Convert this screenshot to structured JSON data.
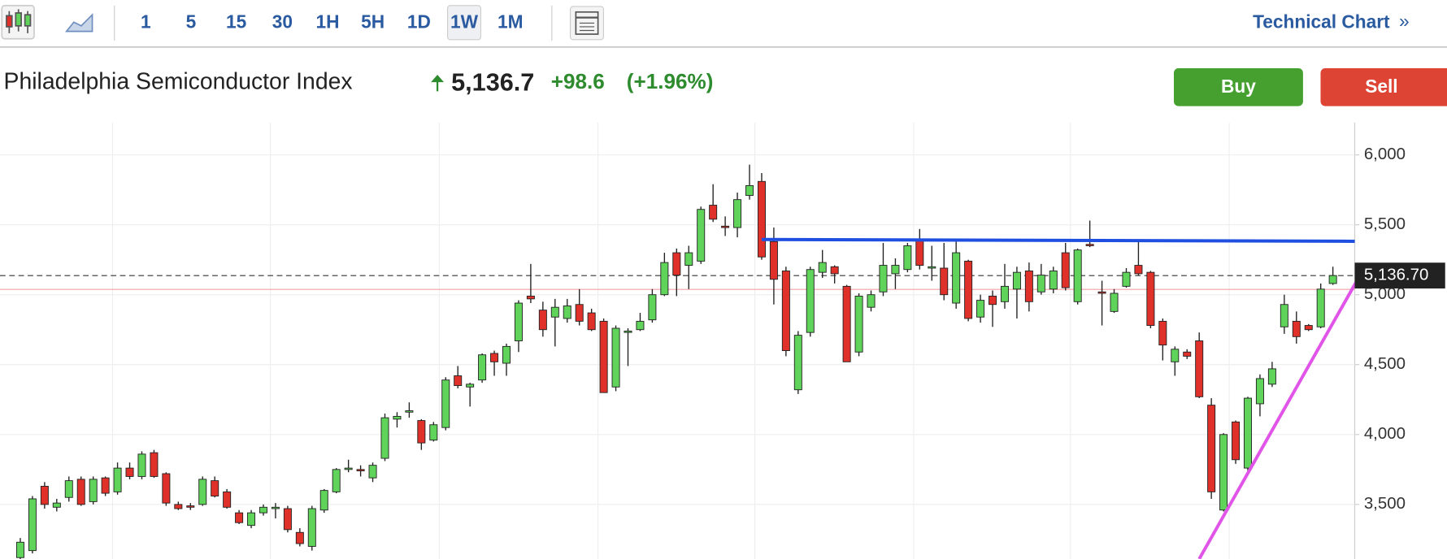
{
  "toolbar": {
    "intervals": [
      "1",
      "5",
      "15",
      "30",
      "1H",
      "5H",
      "1D",
      "1W",
      "1M"
    ],
    "selected": "1W",
    "link": "Technical Chart",
    "link_arrow": "»"
  },
  "header": {
    "title": "Philadelphia Semiconductor Index",
    "price": "5,136.7",
    "change": "+98.6",
    "change_pct": "(+1.96%)"
  },
  "buttons": {
    "buy": "Buy",
    "sell": "Sell"
  },
  "chart_data": {
    "type": "candlestick",
    "up_color": "#5fd35a",
    "down_color": "#e0302a",
    "outline": "#222",
    "ylim": [
      3110,
      6230
    ],
    "yticks": [
      {
        "value": 3500,
        "label": "3,500"
      },
      {
        "value": 4000,
        "label": "4,000"
      },
      {
        "value": 4500,
        "label": "4,500"
      },
      {
        "value": 5000,
        "label": "5,000"
      },
      {
        "value": 5500,
        "label": "5,500"
      },
      {
        "value": 6000,
        "label": "6,000"
      }
    ],
    "grid": true,
    "last_price": {
      "value": 5136.7,
      "label": "5,136.70"
    },
    "previous_close": 5038.1,
    "trendlines": [
      {
        "color": "#1f4fe0",
        "points": [
          [
            61,
            5395
          ],
          [
            117,
            5380
          ]
        ]
      },
      {
        "color": "#e055e8",
        "points": [
          [
            97,
            3110
          ],
          [
            111.8,
            5380
          ]
        ]
      }
    ],
    "open": [
      3120,
      3170,
      3630,
      3480,
      3550,
      3680,
      3520,
      3690,
      3590,
      3760,
      3700,
      3870,
      3720,
      3500,
      3490,
      3500,
      3670,
      3590,
      3440,
      3350,
      3440,
      3470,
      3470,
      3300,
      3200,
      3460,
      3590,
      3750,
      3750,
      3690,
      3830,
      4110,
      4160,
      4100,
      3960,
      4050,
      4420,
      4340,
      4390,
      4580,
      4510,
      4670,
      4990,
      4890,
      4840,
      4830,
      4930,
      4870,
      4810,
      4340,
      4730,
      4750,
      4820,
      5000,
      5300,
      5210,
      5240,
      5640,
      5490,
      5480,
      5710,
      5810,
      5380,
      5170,
      4320,
      4730,
      5160,
      5200,
      5060,
      4590,
      4910,
      5020,
      5150,
      5180,
      5390,
      5190,
      5190,
      4940,
      5240,
      4840,
      4990,
      4950,
      5040,
      5170,
      5020,
      5040,
      5300,
      4950,
      5360,
      5020,
      4880,
      5060,
      5210,
      5160,
      4810,
      4520,
      4590,
      4670,
      4210,
      3460,
      4090,
      3760,
      4220,
      4360,
      4770,
      4810,
      4780,
      4770,
      5080
    ],
    "high": [
      3260,
      3560,
      3660,
      3540,
      3700,
      3700,
      3700,
      3700,
      3800,
      3800,
      3880,
      3890,
      3730,
      3520,
      3510,
      3700,
      3700,
      3610,
      3460,
      3460,
      3500,
      3510,
      3490,
      3330,
      3490,
      3610,
      3760,
      3820,
      3780,
      3800,
      4150,
      4160,
      4230,
      4110,
      4090,
      4410,
      4490,
      4370,
      4580,
      4600,
      4650,
      4960,
      5220,
      4950,
      4970,
      4970,
      5040,
      4900,
      4830,
      4780,
      4760,
      4870,
      5040,
      5300,
      5330,
      5350,
      5630,
      5790,
      5560,
      5730,
      5930,
      5870,
      5480,
      5200,
      4740,
      5200,
      5320,
      5210,
      5070,
      5010,
      5030,
      5370,
      5260,
      5370,
      5470,
      5350,
      5370,
      5380,
      5250,
      5000,
      5030,
      5220,
      5200,
      5230,
      5220,
      5200,
      5370,
      5330,
      5530,
      5100,
      5040,
      5190,
      5380,
      5170,
      4830,
      4630,
      4610,
      4730,
      4260,
      4010,
      4100,
      4270,
      4430,
      4520,
      5000,
      4880,
      4790,
      5080,
      5200
    ],
    "low": [
      3110,
      3150,
      3470,
      3450,
      3520,
      3490,
      3500,
      3560,
      3570,
      3680,
      3680,
      3690,
      3490,
      3460,
      3460,
      3490,
      3550,
      3470,
      3360,
      3330,
      3420,
      3400,
      3300,
      3200,
      3170,
      3440,
      3580,
      3730,
      3700,
      3660,
      3810,
      4050,
      4120,
      3890,
      3950,
      4030,
      4330,
      4200,
      4370,
      4420,
      4420,
      4590,
      4940,
      4700,
      4630,
      4800,
      4780,
      4740,
      4300,
      4310,
      4490,
      4740,
      4800,
      4990,
      4990,
      5040,
      5220,
      5520,
      5420,
      5410,
      5680,
      5250,
      4930,
      4560,
      4290,
      4700,
      5120,
      5080,
      4520,
      4560,
      4880,
      4990,
      5040,
      5160,
      5180,
      5100,
      4960,
      4900,
      4810,
      4800,
      4770,
      4900,
      4830,
      4880,
      5000,
      5010,
      5030,
      4930,
      5340,
      4780,
      4870,
      5050,
      5140,
      4760,
      4530,
      4420,
      4540,
      4260,
      3540,
      3450,
      3790,
      3740,
      4130,
      4340,
      4720,
      4650,
      4740,
      4760,
      5070
    ],
    "close": [
      3230,
      3540,
      3500,
      3510,
      3670,
      3500,
      3680,
      3580,
      3760,
      3700,
      3860,
      3700,
      3510,
      3470,
      3480,
      3680,
      3560,
      3480,
      3370,
      3440,
      3480,
      3480,
      3320,
      3220,
      3470,
      3600,
      3750,
      3760,
      3740,
      3780,
      4120,
      4130,
      4170,
      3940,
      4070,
      4390,
      4350,
      4360,
      4570,
      4520,
      4630,
      4940,
      4970,
      4750,
      4910,
      4920,
      4810,
      4750,
      4300,
      4760,
      4740,
      4810,
      5000,
      5230,
      5140,
      5300,
      5610,
      5540,
      5480,
      5680,
      5780,
      5270,
      5110,
      4600,
      4710,
      5180,
      5230,
      5150,
      4520,
      4990,
      5000,
      5210,
      5210,
      5350,
      5210,
      5200,
      5000,
      5300,
      4830,
      4960,
      4930,
      5060,
      5160,
      4950,
      5140,
      5170,
      5050,
      5320,
      5350,
      5010,
      5010,
      5160,
      5150,
      4780,
      4640,
      4610,
      4560,
      4270,
      3590,
      4000,
      3820,
      4260,
      4400,
      4470,
      4930,
      4700,
      4750,
      5040,
      5136.7
    ]
  }
}
